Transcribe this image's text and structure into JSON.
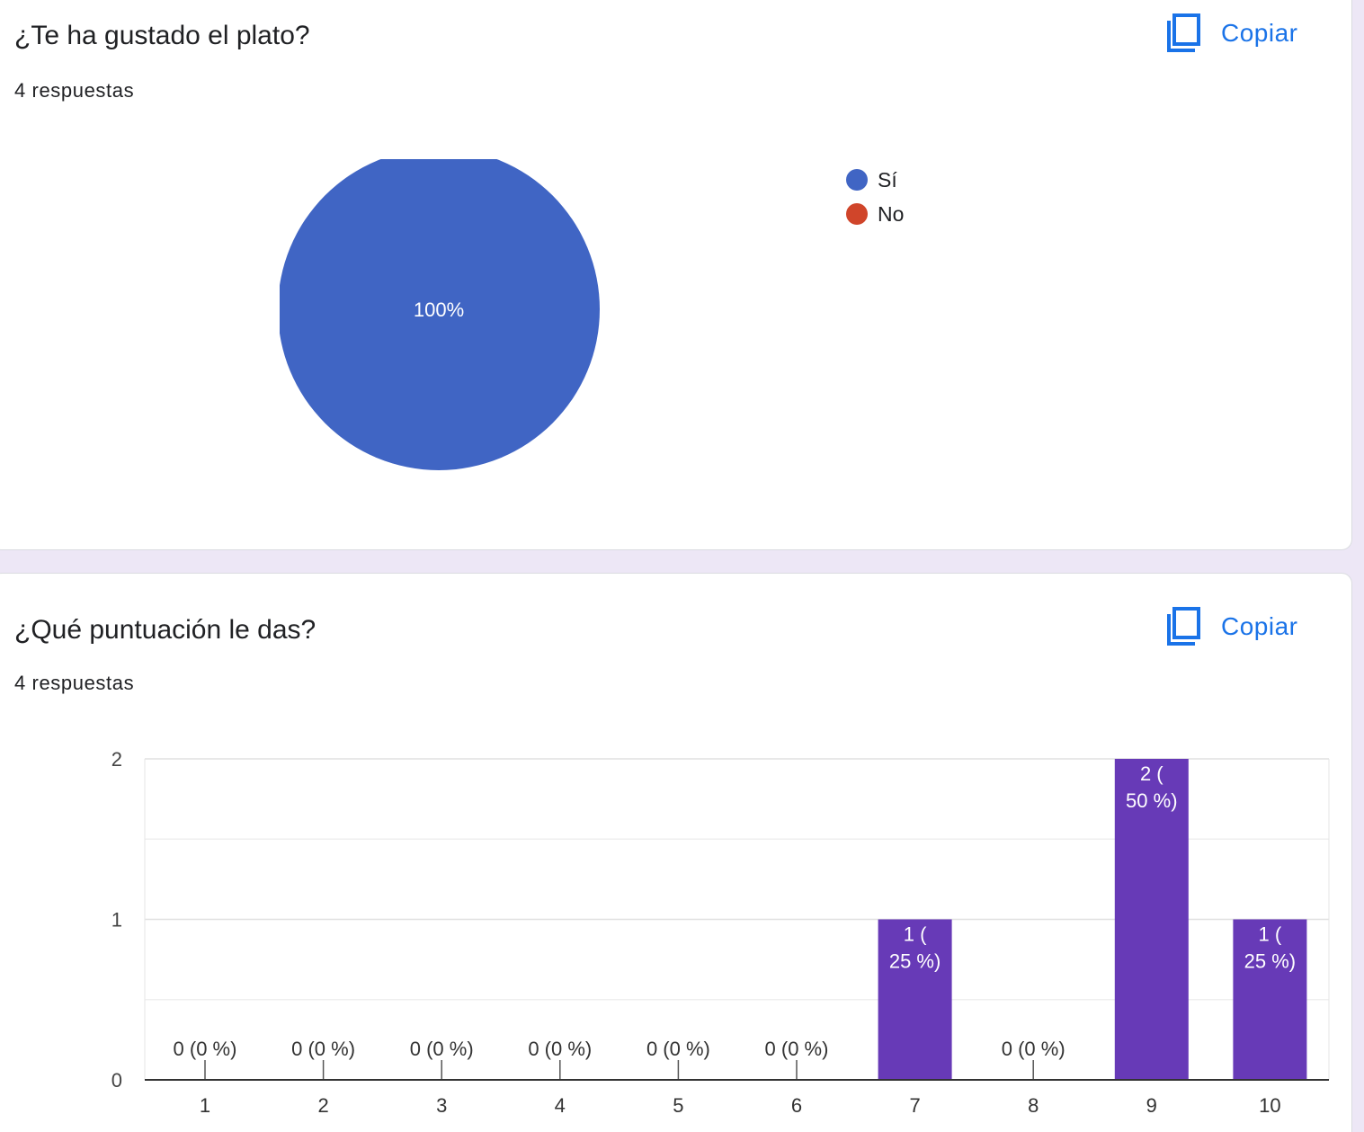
{
  "question1": {
    "title": "¿Te ha gustado el plato?",
    "count": "4 respuestas",
    "copy_label": "Copiar",
    "chart_data": {
      "type": "pie",
      "categories": [
        "Sí",
        "No"
      ],
      "values": [
        4,
        0
      ],
      "slice_labels": [
        "100%",
        ""
      ],
      "colors": [
        "#4065c4",
        "#d0452a"
      ],
      "legend_position": "right"
    }
  },
  "question2": {
    "title": "¿Qué puntuación le das?",
    "count": "4 respuestas",
    "copy_label": "Copiar",
    "chart_data": {
      "type": "bar",
      "categories": [
        "1",
        "2",
        "3",
        "4",
        "5",
        "6",
        "7",
        "8",
        "9",
        "10"
      ],
      "values": [
        0,
        0,
        0,
        0,
        0,
        0,
        1,
        0,
        2,
        1
      ],
      "data_labels": [
        [
          "0 (0 %)"
        ],
        [
          "0 (0 %)"
        ],
        [
          "0 (0 %)"
        ],
        [
          "0 (0 %)"
        ],
        [
          "0 (0 %)"
        ],
        [
          "0 (0 %)"
        ],
        [
          "1 (",
          "25 %)"
        ],
        [
          "0 (0 %)"
        ],
        [
          "2 (",
          "50 %)"
        ],
        [
          "1 (",
          "25 %)"
        ]
      ],
      "ylim": [
        0,
        2
      ],
      "yticks": [
        "0",
        "1",
        "2"
      ],
      "grid": true,
      "bar_color": "#673ab7"
    }
  }
}
